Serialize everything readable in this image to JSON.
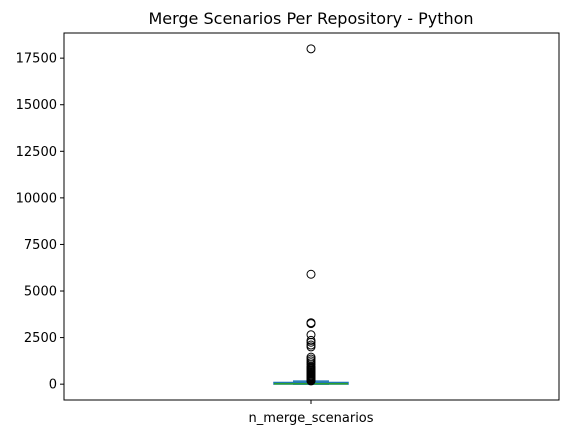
{
  "chart_data": {
    "type": "box",
    "title": "Merge Scenarios Per Repository - Python",
    "xlabel": "",
    "ylabel": "",
    "categories": [
      "n_merge_scenarios"
    ],
    "ylim": [
      -850,
      18850
    ],
    "yticks": [
      0,
      2500,
      5000,
      7500,
      10000,
      12500,
      15000,
      17500
    ],
    "box": {
      "whisker_low": 0,
      "q1": 5,
      "median": 25,
      "q3": 90,
      "whisker_high": 160
    },
    "outliers": [
      18000,
      5900,
      3300,
      3250,
      2650,
      2350,
      2250,
      2100,
      2000,
      1450,
      1350,
      1250,
      1150,
      1050,
      950,
      900,
      850,
      800,
      750,
      700,
      650,
      600,
      550,
      500,
      450,
      420,
      390,
      360,
      330,
      300,
      275,
      250,
      230,
      210,
      190,
      175
    ],
    "colors": {
      "box": "#1f77b4",
      "median": "#2ca02c",
      "whisker": "#1f77b4",
      "outlier_edge": "#000000"
    },
    "grid": false,
    "legend": "none"
  }
}
